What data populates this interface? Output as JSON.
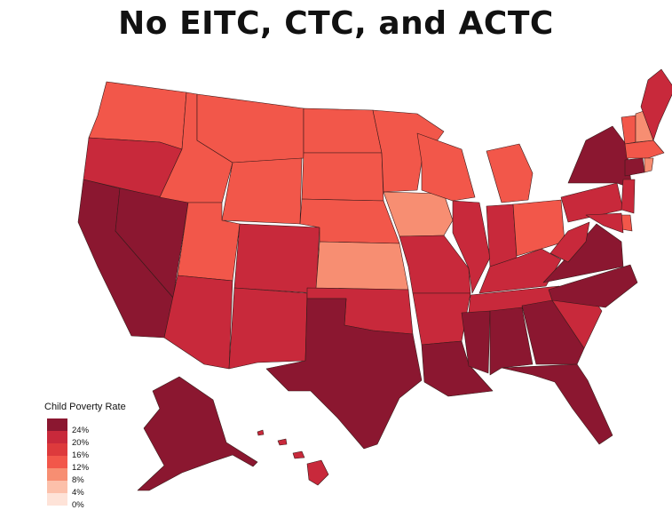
{
  "title": "No EITC, CTC, and ACTC",
  "legend": {
    "title": "Child Poverty Rate",
    "bins": [
      {
        "label": "24%",
        "color": "#8b1730"
      },
      {
        "label": "20%",
        "color": "#c8293b"
      },
      {
        "label": "16%",
        "color": "#dd3a3c"
      },
      {
        "label": "12%",
        "color": "#f2574a"
      },
      {
        "label": "8%",
        "color": "#f78e72"
      },
      {
        "label": "4%",
        "color": "#fcc0aa"
      },
      {
        "label": "0%",
        "color": "#fee3d8"
      }
    ]
  },
  "map_data": {
    "variable": "Child Poverty Rate",
    "state_bin": {
      "WA": "12%",
      "OR": "20%",
      "CA": "24%",
      "NV": "24%",
      "ID": "12%",
      "MT": "12%",
      "WY": "12%",
      "UT": "12%",
      "AZ": "20%",
      "CO": "20%",
      "NM": "20%",
      "ND": "12%",
      "SD": "12%",
      "NE": "12%",
      "KS": "8%",
      "OK": "20%",
      "TX": "24%",
      "MN": "12%",
      "IA": "8%",
      "MO": "20%",
      "AR": "20%",
      "LA": "24%",
      "WI": "12%",
      "IL": "20%",
      "MI": "12%",
      "IN": "20%",
      "OH": "12%",
      "KY": "20%",
      "TN": "20%",
      "MS": "24%",
      "AL": "24%",
      "GA": "24%",
      "FL": "24%",
      "SC": "20%",
      "NC": "24%",
      "VA": "24%",
      "WV": "20%",
      "PA": "20%",
      "NY": "24%",
      "VT": "12%",
      "NH": "8%",
      "ME": "20%",
      "MA": "12%",
      "CT": "24%",
      "RI": "8%",
      "NJ": "20%",
      "DE": "12%",
      "MD": "20%",
      "AK": "24%",
      "HI": "20%"
    }
  }
}
